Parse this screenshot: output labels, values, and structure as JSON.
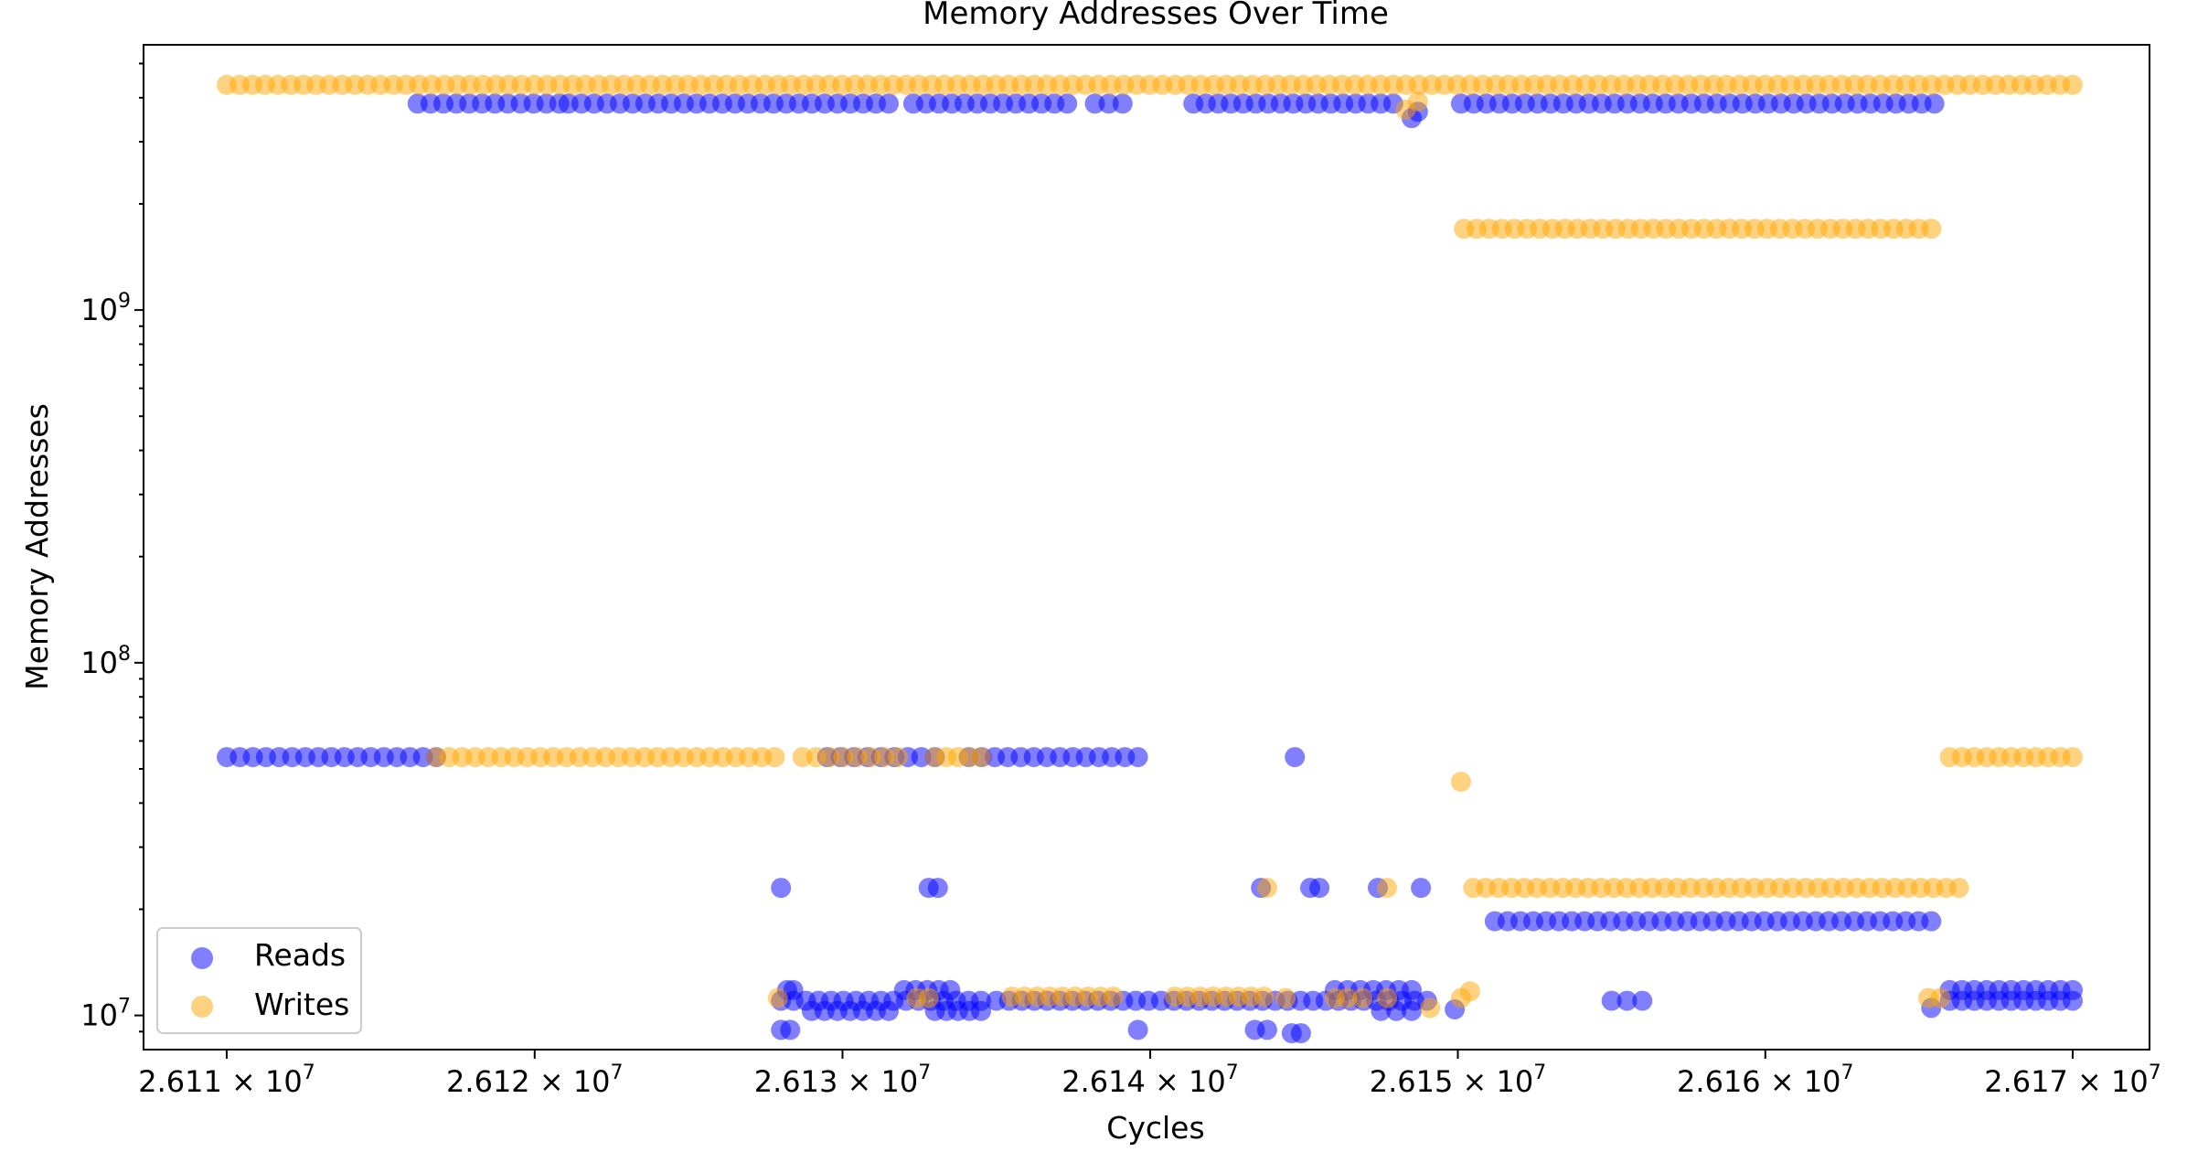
{
  "chart_data": {
    "type": "scatter",
    "title": "Memory Addresses Over Time",
    "xlabel": "Cycles",
    "ylabel": "Memory Addresses",
    "xscale": "log",
    "yscale": "log",
    "xlim": [
      26107300,
      26172500
    ],
    "ylim": [
      8000000,
      5650000000
    ],
    "xticks": [
      {
        "value": 26110000,
        "mantissa": "2.611",
        "exp": "7"
      },
      {
        "value": 26120000,
        "mantissa": "2.612",
        "exp": "7"
      },
      {
        "value": 26130000,
        "mantissa": "2.613",
        "exp": "7"
      },
      {
        "value": 26140000,
        "mantissa": "2.614",
        "exp": "7"
      },
      {
        "value": 26150000,
        "mantissa": "2.615",
        "exp": "7"
      },
      {
        "value": 26160000,
        "mantissa": "2.616",
        "exp": "7"
      },
      {
        "value": 26170000,
        "mantissa": "2.617",
        "exp": "7"
      }
    ],
    "yticks": [
      {
        "value": 10000000,
        "base": "10",
        "exp": "7"
      },
      {
        "value": 100000000,
        "base": "10",
        "exp": "8"
      },
      {
        "value": 1000000000,
        "base": "10",
        "exp": "9"
      }
    ],
    "grid": false,
    "legend": {
      "position": "lower-left"
    },
    "series": [
      {
        "name": "Reads",
        "color": "#0000ff",
        "alpha": 0.5,
        "bands": [
          {
            "y": 3850000000,
            "x": [
              [
                26116200,
                26120800
              ],
              [
                26121100,
                26131500
              ],
              [
                26132300,
                26137300
              ],
              [
                26138200,
                26139100
              ],
              [
                26141400,
                26147900
              ],
              [
                26150100,
                26165500
              ]
            ]
          },
          {
            "y": 54000000,
            "x": [
              [
                26110000,
                26116800
              ],
              [
                26129500,
                26133000
              ],
              [
                26134100,
                26139600
              ]
            ]
          },
          {
            "y": 18500000,
            "x": [
              [
                26151200,
                26165400
              ]
            ]
          },
          {
            "y": 11000000,
            "x": [
              [
                26128000,
                26134500
              ],
              [
                26135000,
                26149000
              ],
              [
                26155000,
                26156000
              ],
              [
                26166000,
                26170000
              ]
            ]
          },
          {
            "y": 11800000,
            "x": [
              [
                26128200,
                26128400
              ],
              [
                26132000,
                26133500
              ],
              [
                26146000,
                26148500
              ],
              [
                26166000,
                26170000
              ]
            ]
          },
          {
            "y": 10300000,
            "x": [
              [
                26129000,
                26131500
              ],
              [
                26133000,
                26134500
              ],
              [
                26147500,
                26148500
              ]
            ]
          }
        ],
        "points": [
          {
            "x": 26148500,
            "y": 3500000000
          },
          {
            "x": 26148700,
            "y": 3650000000
          },
          {
            "x": 26144700,
            "y": 54000000
          },
          {
            "x": 26128000,
            "y": 23000000
          },
          {
            "x": 26132800,
            "y": 23000000
          },
          {
            "x": 26133100,
            "y": 23000000
          },
          {
            "x": 26143600,
            "y": 23000000
          },
          {
            "x": 26145200,
            "y": 23000000
          },
          {
            "x": 26145500,
            "y": 23000000
          },
          {
            "x": 26147400,
            "y": 23000000
          },
          {
            "x": 26148800,
            "y": 23000000
          },
          {
            "x": 26128000,
            "y": 9100000
          },
          {
            "x": 26128300,
            "y": 9100000
          },
          {
            "x": 26139600,
            "y": 9100000
          },
          {
            "x": 26143400,
            "y": 9100000
          },
          {
            "x": 26143800,
            "y": 9100000
          },
          {
            "x": 26144600,
            "y": 8900000
          },
          {
            "x": 26144900,
            "y": 8900000
          },
          {
            "x": 26149900,
            "y": 10400000
          },
          {
            "x": 26165400,
            "y": 10500000
          }
        ]
      },
      {
        "name": "Writes",
        "color": "#ffa500",
        "alpha": 0.5,
        "bands": [
          {
            "y": 4350000000,
            "x": [
              [
                26110000,
                26170000
              ]
            ]
          },
          {
            "y": 1700000000,
            "x": [
              [
                26150200,
                26165400
              ]
            ]
          },
          {
            "y": 54000000,
            "x": [
              [
                26116800,
                26127800
              ],
              [
                26128700,
                26131800
              ],
              [
                26133000,
                26134500
              ],
              [
                26166000,
                26170000
              ]
            ]
          },
          {
            "y": 23000000,
            "x": [
              [
                26150500,
                26166300
              ]
            ]
          },
          {
            "y": 11300000,
            "x": [
              [
                26135500,
                26138800
              ],
              [
                26140800,
                26143700
              ]
            ]
          }
        ],
        "points": [
          {
            "x": 26148300,
            "y": 3700000000
          },
          {
            "x": 26148700,
            "y": 3900000000
          },
          {
            "x": 26150100,
            "y": 46000000
          },
          {
            "x": 26143800,
            "y": 23000000
          },
          {
            "x": 26147700,
            "y": 23000000
          },
          {
            "x": 26127900,
            "y": 11200000
          },
          {
            "x": 26132400,
            "y": 11200000
          },
          {
            "x": 26132800,
            "y": 11200000
          },
          {
            "x": 26144400,
            "y": 11200000
          },
          {
            "x": 26146000,
            "y": 11200000
          },
          {
            "x": 26146400,
            "y": 11200000
          },
          {
            "x": 26146900,
            "y": 11200000
          },
          {
            "x": 26147700,
            "y": 11200000
          },
          {
            "x": 26149100,
            "y": 10500000
          },
          {
            "x": 26150100,
            "y": 11200000
          },
          {
            "x": 26150400,
            "y": 11700000
          },
          {
            "x": 26165300,
            "y": 11200000
          },
          {
            "x": 26165700,
            "y": 11200000
          }
        ]
      }
    ]
  }
}
